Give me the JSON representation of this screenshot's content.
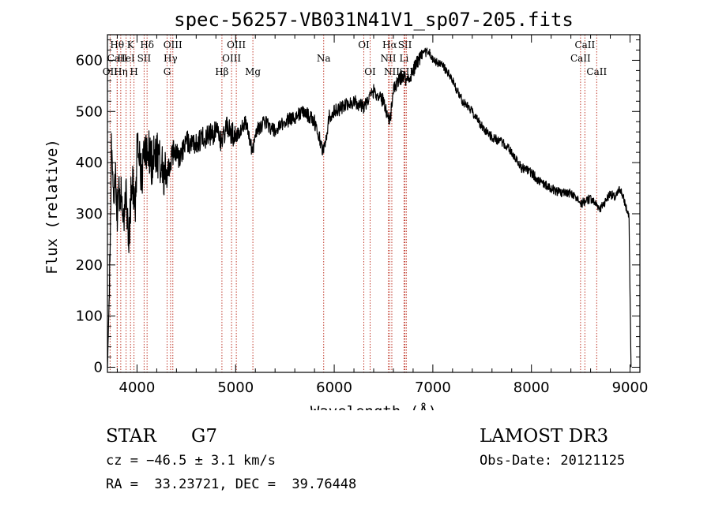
{
  "chart_data": {
    "type": "line",
    "title": "spec-56257-VB031N41V1_sp07-205.fits",
    "xlabel": "Wavelength (Å)",
    "ylabel": "Flux (relative)",
    "xlim": [
      3700,
      9100
    ],
    "ylim": [
      -10,
      650
    ],
    "xticks": [
      4000,
      5000,
      6000,
      7000,
      8000,
      9000
    ],
    "yticks": [
      0,
      100,
      200,
      300,
      400,
      500,
      600
    ],
    "series": [
      {
        "name": "flux",
        "x": [
          3700,
          3720,
          3740,
          3760,
          3780,
          3800,
          3830,
          3860,
          3890,
          3920,
          3950,
          3980,
          4000,
          4050,
          4100,
          4150,
          4200,
          4250,
          4300,
          4340,
          4380,
          4420,
          4500,
          4600,
          4700,
          4800,
          4861,
          4900,
          5000,
          5100,
          5172,
          5200,
          5300,
          5400,
          5500,
          5600,
          5700,
          5800,
          5893,
          5950,
          6000,
          6100,
          6200,
          6300,
          6400,
          6500,
          6563,
          6600,
          6650,
          6700,
          6750,
          6800,
          6850,
          6900,
          6950,
          7000,
          7100,
          7200,
          7300,
          7400,
          7500,
          7600,
          7700,
          7800,
          7900,
          8000,
          8100,
          8200,
          8300,
          8400,
          8500,
          8600,
          8700,
          8800,
          8850,
          8900,
          8950,
          8990,
          9010
        ],
        "y": [
          0,
          150,
          420,
          340,
          380,
          300,
          360,
          280,
          330,
          250,
          380,
          300,
          420,
          380,
          430,
          400,
          420,
          390,
          370,
          400,
          430,
          410,
          440,
          440,
          450,
          460,
          440,
          470,
          450,
          480,
          420,
          460,
          480,
          460,
          480,
          490,
          500,
          480,
          420,
          490,
          500,
          510,
          520,
          510,
          540,
          520,
          480,
          540,
          560,
          570,
          560,
          580,
          600,
          610,
          620,
          600,
          590,
          560,
          520,
          500,
          470,
          450,
          440,
          420,
          390,
          380,
          360,
          350,
          340,
          340,
          320,
          330,
          310,
          340,
          330,
          350,
          320,
          290,
          0
        ]
      }
    ],
    "line_markers": [
      {
        "label": "Hθ",
        "x": 3798,
        "row": 1
      },
      {
        "label": "CaII",
        "x": 3800,
        "row": 2
      },
      {
        "label": "OII",
        "x": 3727,
        "row": 3
      },
      {
        "label": "K",
        "x": 3934,
        "row": 1
      },
      {
        "label": "HeI",
        "x": 3889,
        "row": 2
      },
      {
        "label": "Hη",
        "x": 3835,
        "row": 3
      },
      {
        "label": "Hδ",
        "x": 4102,
        "row": 1
      },
      {
        "label": "SII",
        "x": 4072,
        "row": 2
      },
      {
        "label": "H",
        "x": 3969,
        "row": 3
      },
      {
        "label": "OIII",
        "x": 4363,
        "row": 1
      },
      {
        "label": "Hγ",
        "x": 4340,
        "row": 2
      },
      {
        "label": "G",
        "x": 4305,
        "row": 3
      },
      {
        "label": "OIII",
        "x": 5007,
        "row": 1
      },
      {
        "label": "OIII",
        "x": 4959,
        "row": 2
      },
      {
        "label": "Hβ",
        "x": 4861,
        "row": 3
      },
      {
        "label": "Mg",
        "x": 5175,
        "row": 3
      },
      {
        "label": "Na",
        "x": 5893,
        "row": 2
      },
      {
        "label": "OI",
        "x": 6300,
        "row": 1
      },
      {
        "label": "OI",
        "x": 6364,
        "row": 3
      },
      {
        "label": "Hα",
        "x": 6563,
        "row": 1
      },
      {
        "label": "SII",
        "x": 6717,
        "row": 1
      },
      {
        "label": "NII",
        "x": 6548,
        "row": 2
      },
      {
        "label": "Li",
        "x": 6708,
        "row": 2
      },
      {
        "label": "NII",
        "x": 6584,
        "row": 3
      },
      {
        "label": "SII",
        "x": 6731,
        "row": 3
      },
      {
        "label": "CaII",
        "x": 8542,
        "row": 1
      },
      {
        "label": "CaII",
        "x": 8498,
        "row": 2
      },
      {
        "label": "CaII",
        "x": 8662,
        "row": 3
      }
    ]
  },
  "info": {
    "class": "STAR",
    "subclass": "G7",
    "survey": "LAMOST DR3",
    "cz": "cz = −46.5 ± 3.1 km/s",
    "obs_date": "Obs-Date: 20121125",
    "radec": "RA =  33.23721, DEC =  39.76448"
  }
}
